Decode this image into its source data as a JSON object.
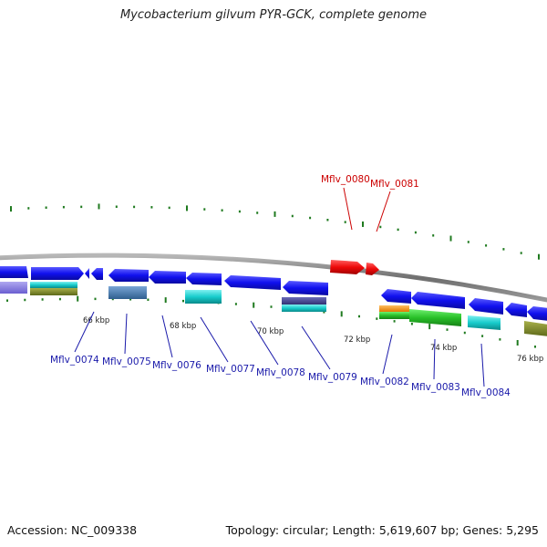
{
  "title": "Mycobacterium gilvum PYR-GCK, complete genome",
  "accession_text": "Accession: NC_009338",
  "summary_text": "Topology: circular; Length: 5,619,607 bp; Genes: 5,295",
  "colors": {
    "backbone": "#8a8a8a",
    "gene_forward_highlight": "#ee1111",
    "gene_reverse": "#1a1aee",
    "label_blue": "#1a1aaa",
    "label_red": "#cc0000",
    "tick": "#1f7a1f"
  },
  "scale_labels": [
    "66 kbp",
    "68 kbp",
    "70 kbp",
    "72 kbp",
    "74 kbp",
    "76 kbp"
  ],
  "gene_labels": {
    "highlighted": [
      "Mflv_0080",
      "Mflv_0081"
    ],
    "lower": [
      "Mflv_0074",
      "Mflv_0075",
      "Mflv_0076",
      "Mflv_0077",
      "Mflv_0078",
      "Mflv_0079",
      "Mflv_0082",
      "Mflv_0083",
      "Mflv_0084"
    ]
  }
}
